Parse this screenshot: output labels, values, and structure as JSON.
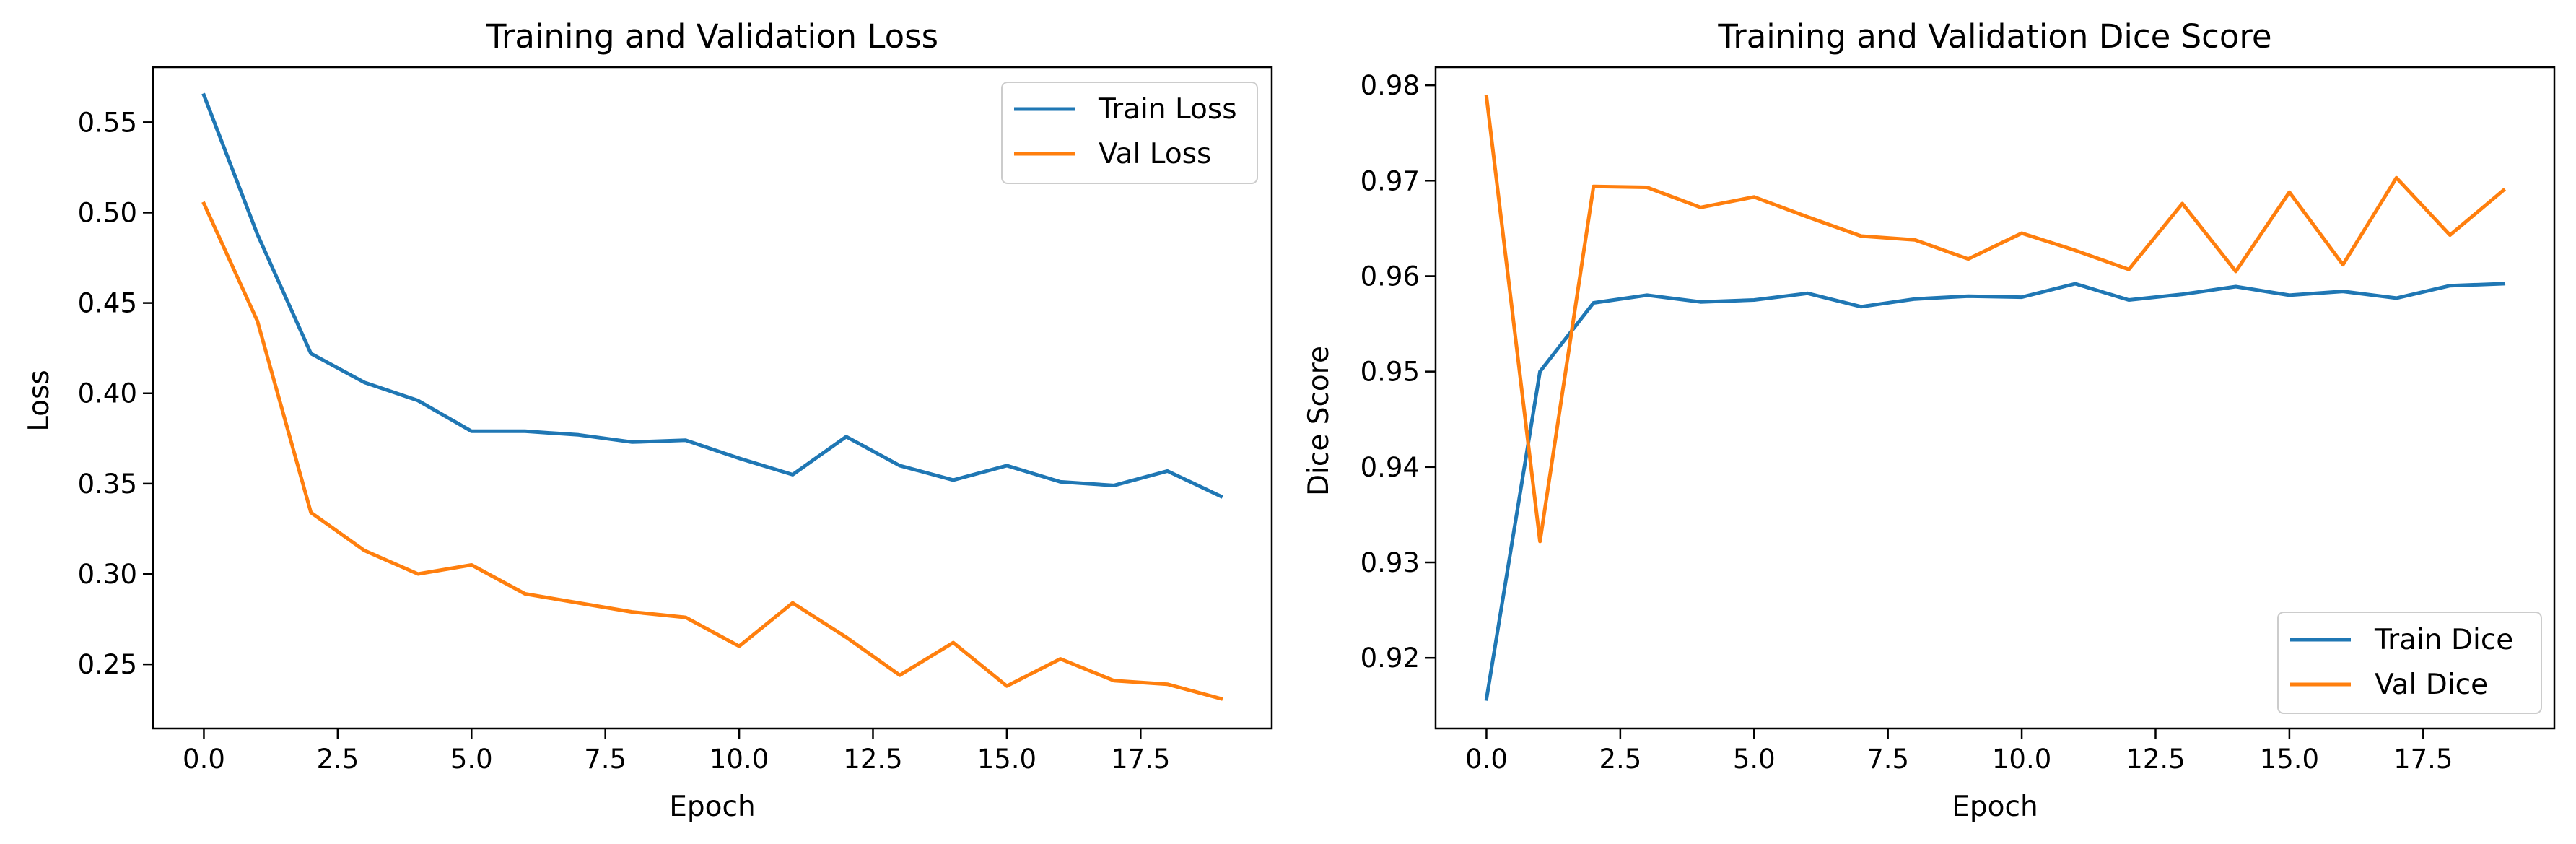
{
  "chart_data": [
    {
      "type": "line",
      "title": "Training and Validation Loss",
      "xlabel": "Epoch",
      "ylabel": "Loss",
      "xlim": [
        -0.95,
        19.95
      ],
      "ylim": [
        0.2145,
        0.5805
      ],
      "xticks": [
        0,
        2.5,
        5,
        7.5,
        10,
        12.5,
        15,
        17.5
      ],
      "xtick_labels": [
        "0.0",
        "2.5",
        "5.0",
        "7.5",
        "10.0",
        "12.5",
        "15.0",
        "17.5"
      ],
      "yticks": [
        0.25,
        0.3,
        0.35,
        0.4,
        0.45,
        0.5,
        0.55
      ],
      "ytick_labels": [
        "0.25",
        "0.30",
        "0.35",
        "0.40",
        "0.45",
        "0.50",
        "0.55"
      ],
      "grid": false,
      "legend_position": "upper-right",
      "x": [
        0,
        1,
        2,
        3,
        4,
        5,
        6,
        7,
        8,
        9,
        10,
        11,
        12,
        13,
        14,
        15,
        16,
        17,
        18,
        19
      ],
      "series": [
        {
          "name": "Train Loss",
          "color": "#1f77b4",
          "values": [
            0.565,
            0.488,
            0.422,
            0.406,
            0.396,
            0.379,
            0.379,
            0.377,
            0.373,
            0.374,
            0.364,
            0.355,
            0.376,
            0.36,
            0.352,
            0.36,
            0.351,
            0.349,
            0.357,
            0.343
          ]
        },
        {
          "name": "Val Loss",
          "color": "#ff7f0e",
          "values": [
            0.505,
            0.44,
            0.334,
            0.313,
            0.3,
            0.305,
            0.289,
            0.284,
            0.279,
            0.276,
            0.26,
            0.284,
            0.265,
            0.244,
            0.262,
            0.238,
            0.253,
            0.241,
            0.239,
            0.231
          ]
        }
      ]
    },
    {
      "type": "line",
      "title": "Training and Validation Dice Score",
      "xlabel": "Epoch",
      "ylabel": "Dice Score",
      "xlim": [
        -0.95,
        19.95
      ],
      "ylim": [
        0.9126,
        0.9819
      ],
      "xticks": [
        0,
        2.5,
        5,
        7.5,
        10,
        12.5,
        15,
        17.5
      ],
      "xtick_labels": [
        "0.0",
        "2.5",
        "5.0",
        "7.5",
        "10.0",
        "12.5",
        "15.0",
        "17.5"
      ],
      "yticks": [
        0.92,
        0.93,
        0.94,
        0.95,
        0.96,
        0.97,
        0.98
      ],
      "ytick_labels": [
        "0.92",
        "0.93",
        "0.94",
        "0.95",
        "0.96",
        "0.97",
        "0.98"
      ],
      "grid": false,
      "legend_position": "lower-right",
      "x": [
        0,
        1,
        2,
        3,
        4,
        5,
        6,
        7,
        8,
        9,
        10,
        11,
        12,
        13,
        14,
        15,
        16,
        17,
        18,
        19
      ],
      "series": [
        {
          "name": "Train Dice",
          "color": "#1f77b4",
          "values": [
            0.9157,
            0.95,
            0.9572,
            0.958,
            0.9573,
            0.9575,
            0.9582,
            0.9568,
            0.9576,
            0.9579,
            0.9578,
            0.9592,
            0.9575,
            0.9581,
            0.9589,
            0.958,
            0.9584,
            0.9577,
            0.959,
            0.9592
          ]
        },
        {
          "name": "Val Dice",
          "color": "#ff7f0e",
          "values": [
            0.9788,
            0.9322,
            0.9694,
            0.9693,
            0.9672,
            0.9683,
            0.9662,
            0.9642,
            0.9638,
            0.9618,
            0.9645,
            0.9627,
            0.9607,
            0.9676,
            0.9605,
            0.9688,
            0.9612,
            0.9703,
            0.9643,
            0.969
          ]
        }
      ]
    }
  ]
}
